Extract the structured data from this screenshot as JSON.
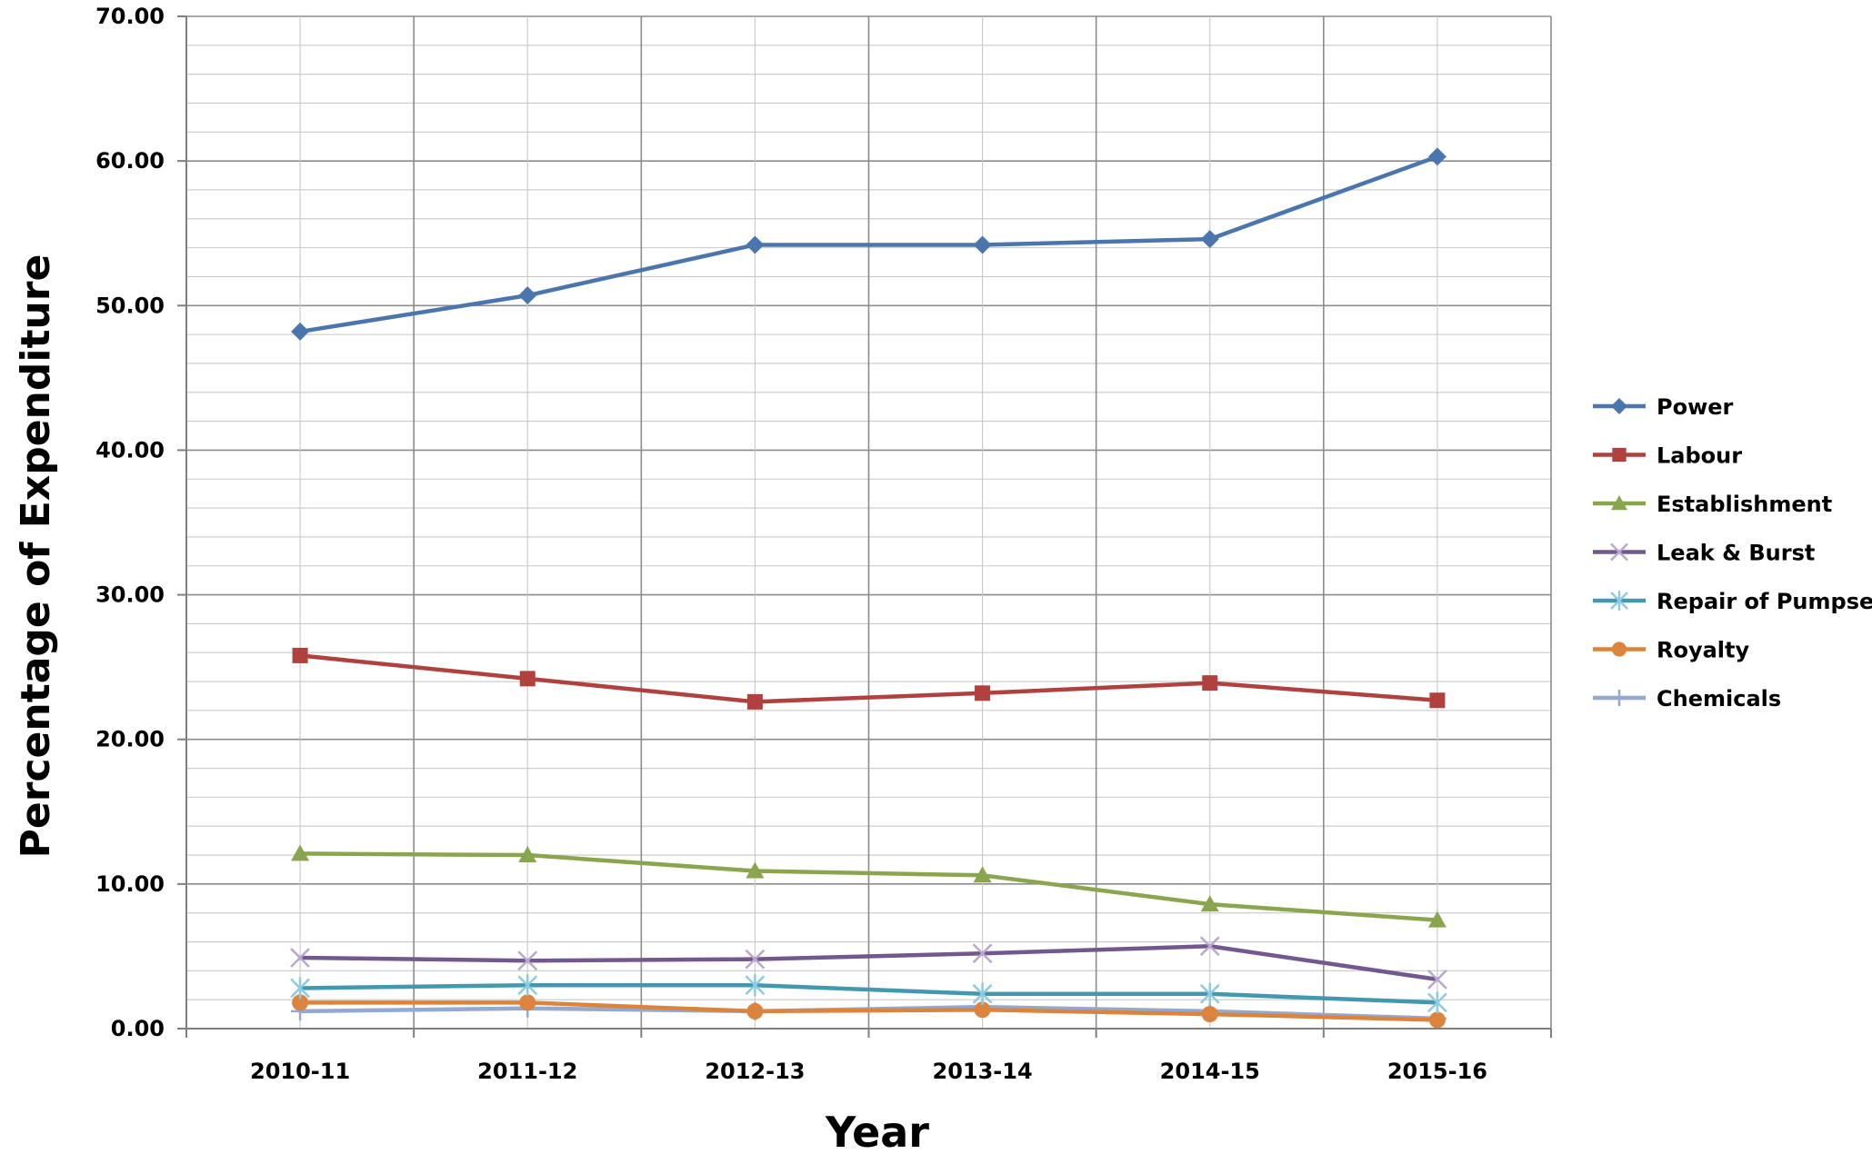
{
  "chart_data": {
    "type": "line",
    "title": "",
    "xlabel": "Year",
    "ylabel": "Percentage of Expenditure",
    "categories": [
      "2010-11",
      "2011-12",
      "2012-13",
      "2013-14",
      "2014-15",
      "2015-16"
    ],
    "ylim": [
      0,
      70
    ],
    "yticks": [
      "0.00",
      "10.00",
      "20.00",
      "30.00",
      "40.00",
      "50.00",
      "60.00",
      "70.00"
    ],
    "grid": true,
    "legend_position": "right",
    "series": [
      {
        "name": "Power",
        "color": "#4a76ad",
        "marker": "diamond",
        "values": [
          48.2,
          50.7,
          54.2,
          54.2,
          54.6,
          60.3
        ]
      },
      {
        "name": "Labour",
        "color": "#b0413e",
        "marker": "square",
        "values": [
          25.8,
          24.2,
          22.6,
          23.2,
          23.9,
          22.7
        ]
      },
      {
        "name": "Establishment",
        "color": "#89a54e",
        "marker": "triangle",
        "values": [
          12.1,
          12.0,
          10.9,
          10.6,
          8.6,
          7.5
        ]
      },
      {
        "name": "Leak & Burst",
        "color": "#71588f",
        "marker": "x",
        "values": [
          4.9,
          4.7,
          4.8,
          5.2,
          5.7,
          3.4
        ]
      },
      {
        "name": "Repair of Pumpsets",
        "color": "#4198af",
        "marker": "star",
        "values": [
          2.8,
          3.0,
          3.0,
          2.4,
          2.4,
          1.8
        ]
      },
      {
        "name": "Royalty",
        "color": "#db843d",
        "marker": "circle",
        "values": [
          1.8,
          1.8,
          1.2,
          1.3,
          1.0,
          0.6
        ]
      },
      {
        "name": "Chemicals",
        "color": "#93a9cf",
        "marker": "plus",
        "values": [
          1.2,
          1.4,
          1.2,
          1.5,
          1.2,
          0.7
        ]
      }
    ]
  }
}
